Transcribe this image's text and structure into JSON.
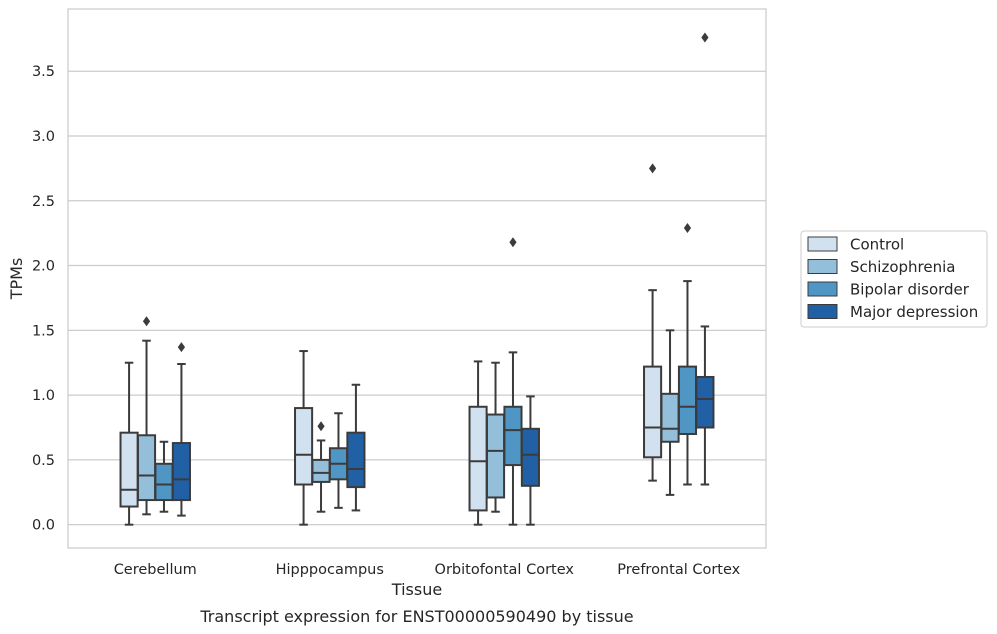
{
  "chart_data": {
    "type": "box",
    "xlabel": "Tissue",
    "ylabel": "TPMs",
    "caption": "Transcript expression for ENST00000590490 by tissue",
    "categories": [
      "Cerebellum",
      "Hipppocampus",
      "Orbitofontal Cortex",
      "Prefrontal Cortex"
    ],
    "ylim": [
      -0.18,
      3.98
    ],
    "yticks": [
      0.0,
      0.5,
      1.0,
      1.5,
      2.0,
      2.5,
      3.0,
      3.5
    ],
    "ytick_labels": [
      "0.0",
      "0.5",
      "1.0",
      "1.5",
      "2.0",
      "2.5",
      "3.0",
      "3.5"
    ],
    "grid": "horizontal",
    "legend_position": "outside-right",
    "series": [
      {
        "name": "Control",
        "color": "#d1e1f0",
        "boxes": [
          {
            "whislo": 0.0,
            "q1": 0.14,
            "med": 0.27,
            "q3": 0.71,
            "whishi": 1.25,
            "fliers": []
          },
          {
            "whislo": 0.0,
            "q1": 0.31,
            "med": 0.54,
            "q3": 0.9,
            "whishi": 1.34,
            "fliers": []
          },
          {
            "whislo": 0.0,
            "q1": 0.11,
            "med": 0.49,
            "q3": 0.91,
            "whishi": 1.26,
            "fliers": []
          },
          {
            "whislo": 0.34,
            "q1": 0.52,
            "med": 0.75,
            "q3": 1.22,
            "whishi": 1.81,
            "fliers": [
              2.75
            ]
          }
        ]
      },
      {
        "name": "Schizophrenia",
        "color": "#94bfdb",
        "boxes": [
          {
            "whislo": 0.08,
            "q1": 0.19,
            "med": 0.38,
            "q3": 0.69,
            "whishi": 1.42,
            "fliers": [
              1.57
            ]
          },
          {
            "whislo": 0.1,
            "q1": 0.33,
            "med": 0.4,
            "q3": 0.5,
            "whishi": 0.65,
            "fliers": [
              0.76
            ]
          },
          {
            "whislo": 0.1,
            "q1": 0.21,
            "med": 0.57,
            "q3": 0.85,
            "whishi": 1.25,
            "fliers": []
          },
          {
            "whislo": 0.23,
            "q1": 0.64,
            "med": 0.74,
            "q3": 1.01,
            "whishi": 1.5,
            "fliers": []
          }
        ]
      },
      {
        "name": "Bipolar disorder",
        "color": "#5096c5",
        "boxes": [
          {
            "whislo": 0.1,
            "q1": 0.19,
            "med": 0.31,
            "q3": 0.47,
            "whishi": 0.64,
            "fliers": []
          },
          {
            "whislo": 0.13,
            "q1": 0.35,
            "med": 0.47,
            "q3": 0.59,
            "whishi": 0.86,
            "fliers": []
          },
          {
            "whislo": 0.0,
            "q1": 0.46,
            "med": 0.73,
            "q3": 0.91,
            "whishi": 1.33,
            "fliers": [
              2.18
            ]
          },
          {
            "whislo": 0.31,
            "q1": 0.7,
            "med": 0.91,
            "q3": 1.22,
            "whishi": 1.88,
            "fliers": [
              2.29
            ]
          }
        ]
      },
      {
        "name": "Major depression",
        "color": "#2160a4",
        "boxes": [
          {
            "whislo": 0.07,
            "q1": 0.19,
            "med": 0.35,
            "q3": 0.63,
            "whishi": 1.24,
            "fliers": [
              1.37
            ]
          },
          {
            "whislo": 0.11,
            "q1": 0.29,
            "med": 0.43,
            "q3": 0.71,
            "whishi": 1.08,
            "fliers": []
          },
          {
            "whislo": 0.0,
            "q1": 0.3,
            "med": 0.54,
            "q3": 0.74,
            "whishi": 0.99,
            "fliers": []
          },
          {
            "whislo": 0.31,
            "q1": 0.75,
            "med": 0.97,
            "q3": 1.14,
            "whishi": 1.53,
            "fliers": [
              3.76
            ]
          }
        ]
      }
    ]
  }
}
